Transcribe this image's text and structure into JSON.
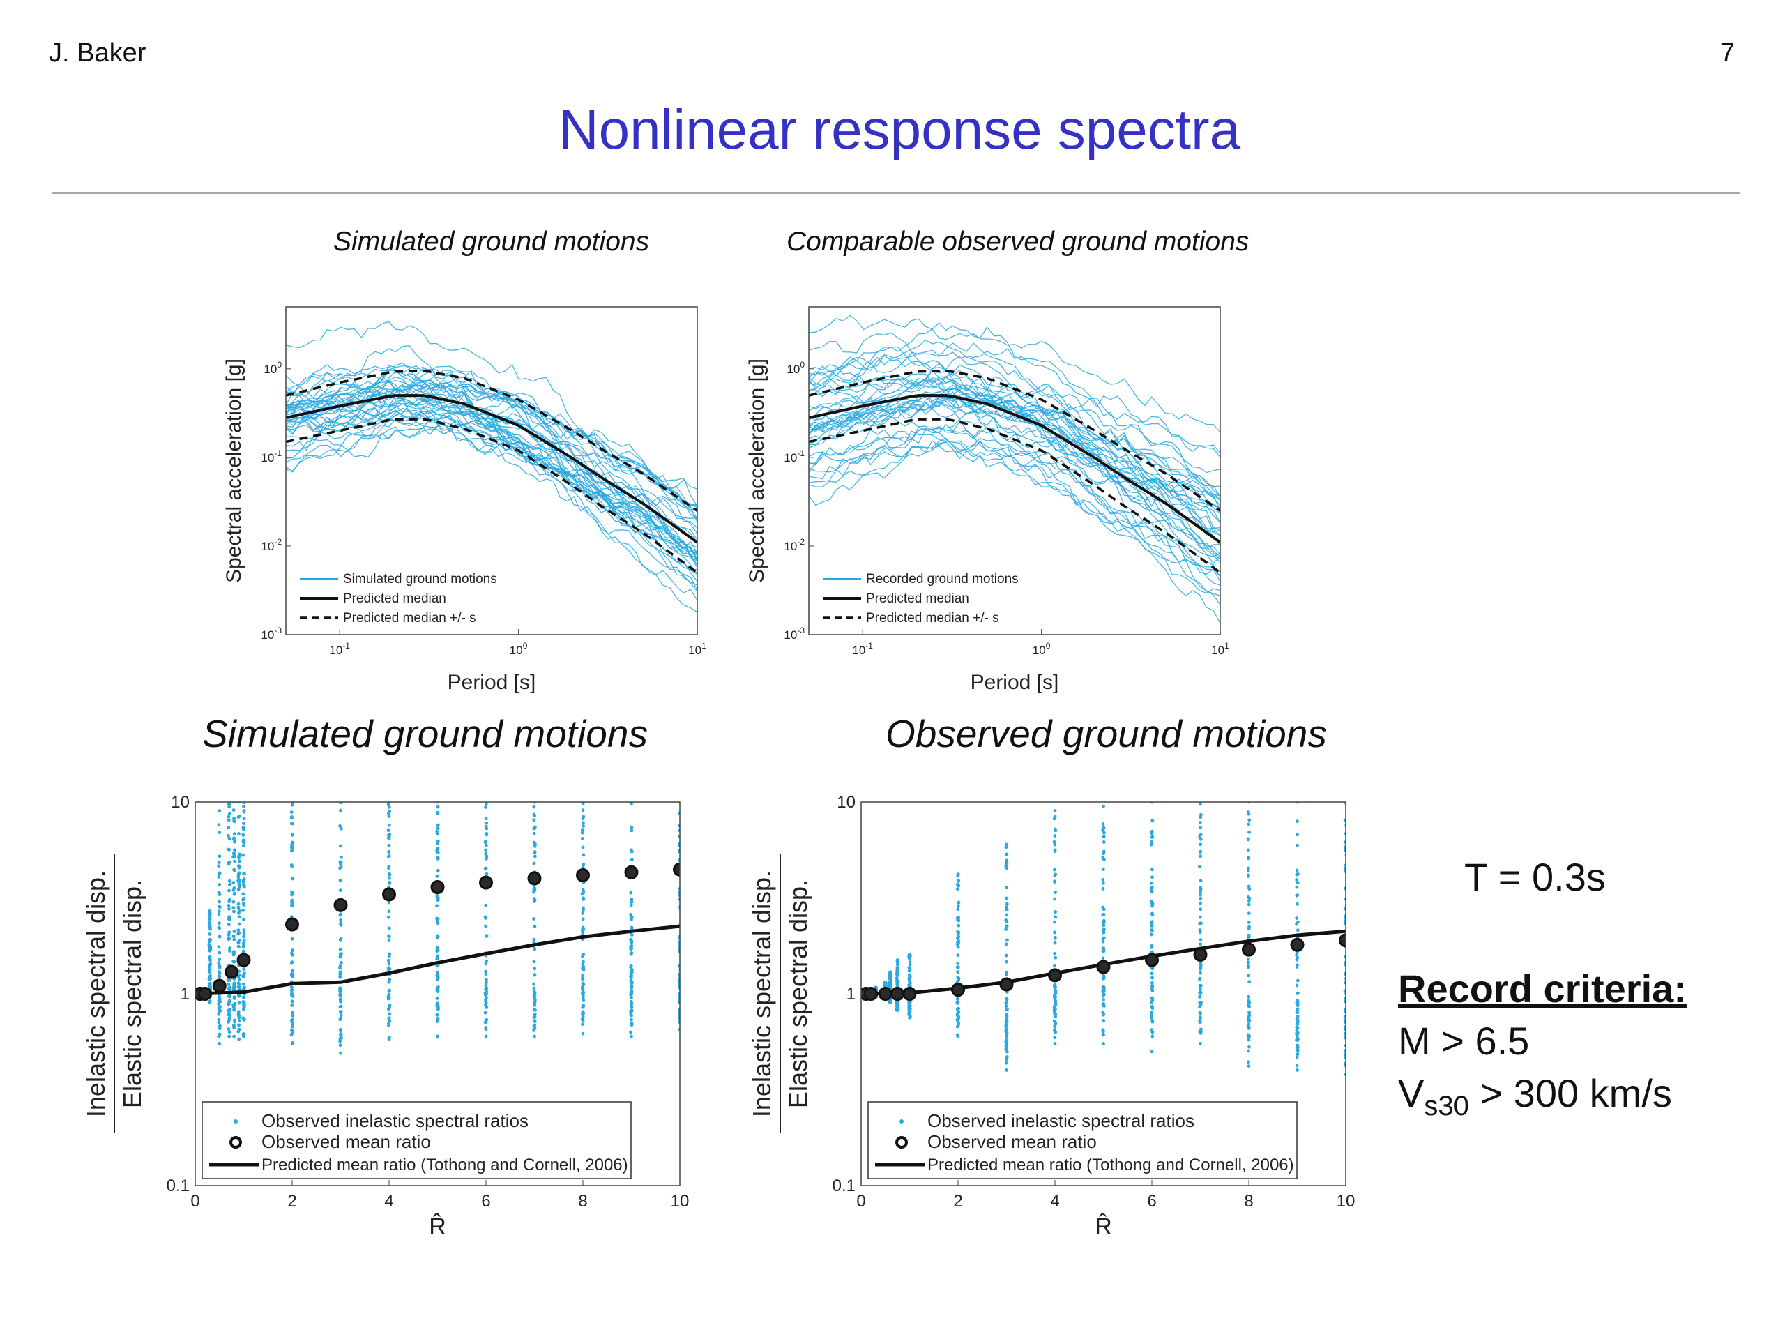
{
  "header": {
    "author": "J. Baker",
    "page_number": "7",
    "title": "Nonlinear response spectra"
  },
  "side_panel": {
    "period": "T = 0.3s",
    "criteria_heading": "Record criteria:",
    "criteria_magnitude": "M > 6.5",
    "criteria_vs_symbol": "V",
    "criteria_vs_sub": "s30",
    "criteria_vs_rest": " > 300 km/s"
  },
  "colors": {
    "title": "#3431c4",
    "observed": "#29a9e0",
    "median": "#111111"
  },
  "chart_data": [
    {
      "type": "line",
      "title": "Simulated ground motions",
      "xlabel": "Period [s]",
      "ylabel": "Spectral acceleration [g]",
      "xscale": "log",
      "yscale": "log",
      "xlim": [
        0.05,
        10
      ],
      "ylim": [
        0.001,
        5
      ],
      "x_ticks": [
        0.1,
        1,
        10
      ],
      "y_ticks": [
        0.001,
        0.01,
        0.1,
        1
      ],
      "legend_position": "bottom-left",
      "legend": [
        "Simulated ground motions",
        "Predicted median",
        "Predicted median +/-   s"
      ],
      "series": [
        {
          "name": "Predicted median",
          "style": "solid",
          "x": [
            0.05,
            0.1,
            0.2,
            0.3,
            0.5,
            1,
            2,
            3,
            5,
            10
          ],
          "y": [
            0.28,
            0.38,
            0.5,
            0.5,
            0.4,
            0.23,
            0.098,
            0.057,
            0.03,
            0.011
          ]
        },
        {
          "name": "Predicted median + s",
          "style": "dashed",
          "x": [
            0.05,
            0.1,
            0.2,
            0.3,
            0.5,
            1,
            2,
            3,
            5,
            10
          ],
          "y": [
            0.5,
            0.7,
            0.93,
            0.95,
            0.78,
            0.45,
            0.2,
            0.12,
            0.065,
            0.025
          ]
        },
        {
          "name": "Predicted median - s",
          "style": "dashed",
          "x": [
            0.05,
            0.1,
            0.2,
            0.3,
            0.5,
            1,
            2,
            3,
            5,
            10
          ],
          "y": [
            0.15,
            0.2,
            0.27,
            0.27,
            0.21,
            0.12,
            0.048,
            0.027,
            0.014,
            0.005
          ]
        }
      ],
      "record_count": 40,
      "record_spread_sigma": 0.5
    },
    {
      "type": "line",
      "title": "Comparable observed ground motions",
      "xlabel": "Period [s]",
      "ylabel": "Spectral acceleration [g]",
      "xscale": "log",
      "yscale": "log",
      "xlim": [
        0.05,
        10
      ],
      "ylim": [
        0.001,
        5
      ],
      "x_ticks": [
        0.1,
        1,
        10
      ],
      "y_ticks": [
        0.001,
        0.01,
        0.1,
        1
      ],
      "legend_position": "bottom-left",
      "legend": [
        "Recorded ground motions",
        "Predicted median",
        "Predicted median +/-   s"
      ],
      "series": [
        {
          "name": "Predicted median",
          "style": "solid",
          "x": [
            0.05,
            0.1,
            0.2,
            0.3,
            0.5,
            1,
            2,
            3,
            5,
            10
          ],
          "y": [
            0.28,
            0.38,
            0.5,
            0.5,
            0.4,
            0.23,
            0.098,
            0.057,
            0.03,
            0.011
          ]
        },
        {
          "name": "Predicted median + s",
          "style": "dashed",
          "x": [
            0.05,
            0.1,
            0.2,
            0.3,
            0.5,
            1,
            2,
            3,
            5,
            10
          ],
          "y": [
            0.5,
            0.7,
            0.93,
            0.95,
            0.78,
            0.45,
            0.2,
            0.12,
            0.065,
            0.025
          ]
        },
        {
          "name": "Predicted median - s",
          "style": "dashed",
          "x": [
            0.05,
            0.1,
            0.2,
            0.3,
            0.5,
            1,
            2,
            3,
            5,
            10
          ],
          "y": [
            0.15,
            0.2,
            0.27,
            0.27,
            0.21,
            0.12,
            0.048,
            0.027,
            0.014,
            0.005
          ]
        }
      ],
      "record_count": 40,
      "record_spread_sigma": 0.75
    },
    {
      "type": "scatter",
      "title": "Simulated ground motions",
      "xlabel": "R̂",
      "ylabel": [
        "Inelastic spectral disp.",
        "Elastic spectral disp."
      ],
      "yscale": "log",
      "xlim": [
        0,
        10
      ],
      "ylim": [
        0.1,
        10
      ],
      "x_ticks": [
        0,
        2,
        4,
        6,
        8,
        10
      ],
      "y_ticks": [
        0.1,
        1,
        10
      ],
      "legend_position": "bottom-left",
      "legend": [
        "Observed inelastic spectral ratios",
        "Observed mean ratio",
        "Predicted mean ratio (Tothong and Cornell, 2006)"
      ],
      "observed_columns": [
        {
          "x": 0.1,
          "min": 0.98,
          "max": 1.02
        },
        {
          "x": 0.2,
          "min": 0.95,
          "max": 1.05
        },
        {
          "x": 0.3,
          "min": 0.9,
          "max": 2.7
        },
        {
          "x": 0.5,
          "min": 0.55,
          "max": 9
        },
        {
          "x": 0.7,
          "min": 0.6,
          "max": 10
        },
        {
          "x": 0.8,
          "min": 0.6,
          "max": 10
        },
        {
          "x": 0.9,
          "min": 0.58,
          "max": 10
        },
        {
          "x": 1,
          "min": 0.6,
          "max": 10
        },
        {
          "x": 2,
          "min": 0.55,
          "max": 10
        },
        {
          "x": 3,
          "min": 0.49,
          "max": 10
        },
        {
          "x": 4,
          "min": 0.58,
          "max": 10
        },
        {
          "x": 5,
          "min": 0.6,
          "max": 10
        },
        {
          "x": 6,
          "min": 0.6,
          "max": 10
        },
        {
          "x": 7,
          "min": 0.6,
          "max": 10
        },
        {
          "x": 8,
          "min": 0.62,
          "max": 10
        },
        {
          "x": 9,
          "min": 0.6,
          "max": 10
        },
        {
          "x": 10,
          "min": 0.65,
          "max": 10
        }
      ],
      "observed_mean": {
        "x": [
          0.1,
          0.2,
          0.5,
          0.75,
          1,
          2,
          3,
          4,
          5,
          6,
          7,
          8,
          9,
          10
        ],
        "y": [
          1,
          1,
          1.1,
          1.3,
          1.5,
          2.3,
          2.9,
          3.3,
          3.6,
          3.8,
          4.0,
          4.15,
          4.3,
          4.45
        ]
      },
      "predicted_mean": {
        "x": [
          0,
          1,
          2,
          3,
          4,
          5,
          6,
          7,
          8,
          9,
          10
        ],
        "y": [
          1,
          1.02,
          1.13,
          1.15,
          1.28,
          1.45,
          1.62,
          1.8,
          1.98,
          2.12,
          2.25
        ]
      }
    },
    {
      "type": "scatter",
      "title": "Observed ground motions",
      "xlabel": "R̂",
      "ylabel": [
        "Inelastic spectral disp.",
        "Elastic spectral disp."
      ],
      "yscale": "log",
      "xlim": [
        0,
        10
      ],
      "ylim": [
        0.1,
        10
      ],
      "x_ticks": [
        0,
        2,
        4,
        6,
        8,
        10
      ],
      "y_ticks": [
        0.1,
        1,
        10
      ],
      "legend_position": "bottom-left",
      "legend": [
        "Observed inelastic spectral ratios",
        "Observed mean ratio",
        "Predicted mean ratio (Tothong and Cornell, 2006)"
      ],
      "observed_columns": [
        {
          "x": 0.1,
          "min": 0.98,
          "max": 1.02
        },
        {
          "x": 0.2,
          "min": 0.97,
          "max": 1.04
        },
        {
          "x": 0.3,
          "min": 0.96,
          "max": 1.08
        },
        {
          "x": 0.5,
          "min": 0.95,
          "max": 1.15
        },
        {
          "x": 0.6,
          "min": 0.9,
          "max": 1.3
        },
        {
          "x": 0.75,
          "min": 0.82,
          "max": 1.5
        },
        {
          "x": 1,
          "min": 0.75,
          "max": 1.6
        },
        {
          "x": 2,
          "min": 0.6,
          "max": 4.2
        },
        {
          "x": 3,
          "min": 0.4,
          "max": 6
        },
        {
          "x": 4,
          "min": 0.55,
          "max": 9
        },
        {
          "x": 5,
          "min": 0.55,
          "max": 9.5
        },
        {
          "x": 6,
          "min": 0.5,
          "max": 10
        },
        {
          "x": 7,
          "min": 0.55,
          "max": 10
        },
        {
          "x": 8,
          "min": 0.42,
          "max": 10
        },
        {
          "x": 9,
          "min": 0.4,
          "max": 10
        },
        {
          "x": 10,
          "min": 0.38,
          "max": 10
        }
      ],
      "observed_mean": {
        "x": [
          0.1,
          0.2,
          0.5,
          0.75,
          1,
          2,
          3,
          4,
          5,
          6,
          7,
          8,
          9,
          10
        ],
        "y": [
          1,
          1,
          1,
          1,
          1,
          1.05,
          1.12,
          1.25,
          1.38,
          1.5,
          1.6,
          1.7,
          1.8,
          1.9
        ]
      },
      "predicted_mean": {
        "x": [
          0,
          1,
          2,
          3,
          4,
          5,
          6,
          7,
          8,
          9,
          10
        ],
        "y": [
          1,
          1.01,
          1.07,
          1.15,
          1.28,
          1.42,
          1.57,
          1.72,
          1.88,
          2.02,
          2.12
        ]
      }
    }
  ]
}
